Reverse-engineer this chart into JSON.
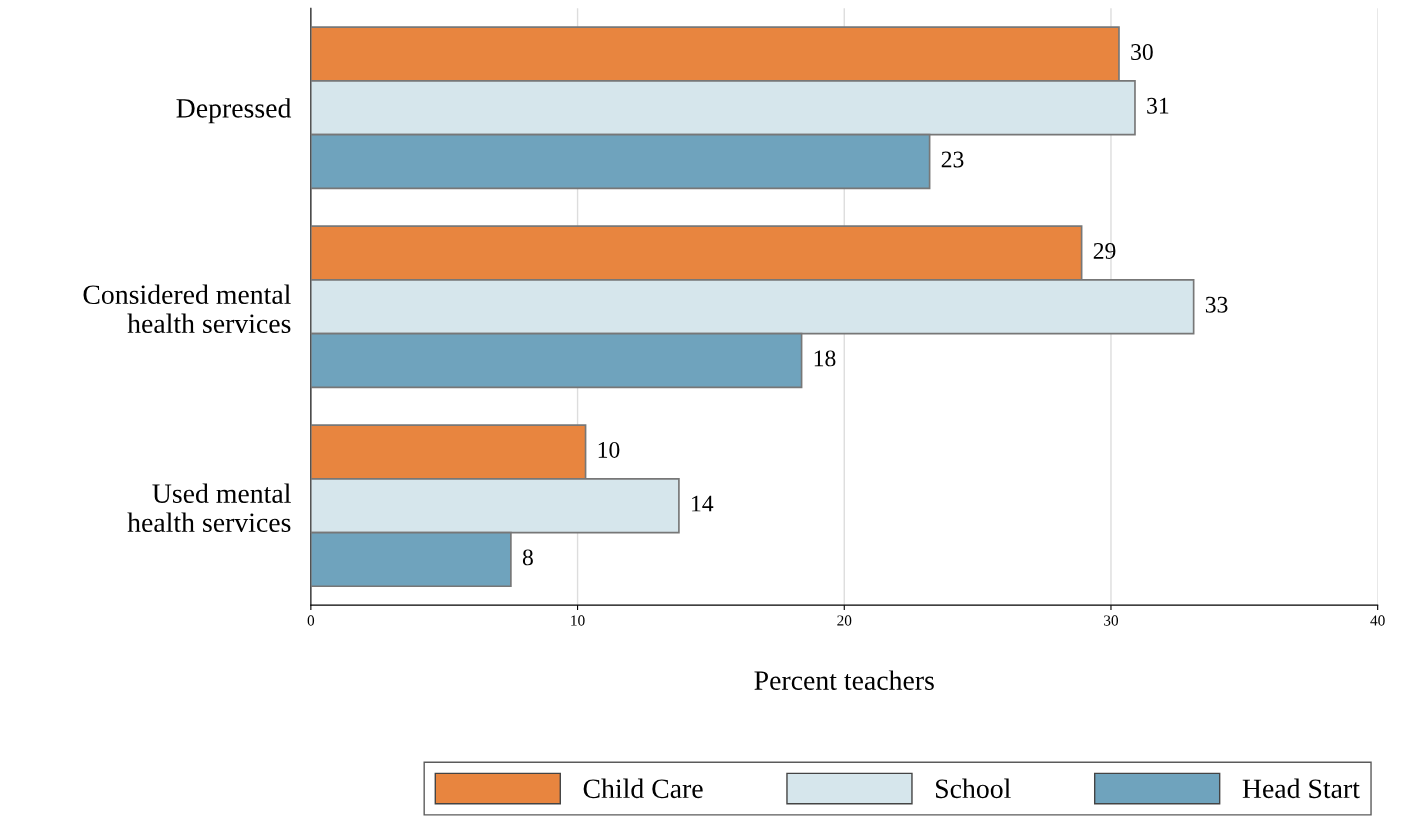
{
  "chart_data": {
    "type": "bar",
    "orientation": "horizontal",
    "categories": [
      "Depressed",
      "Considered mental\nhealth services",
      "Used mental\nhealth services"
    ],
    "series": [
      {
        "name": "Child Care",
        "color": "#e8853f",
        "values": [
          30.3,
          28.9,
          10.3
        ],
        "value_labels": [
          "30",
          "29",
          "10"
        ]
      },
      {
        "name": "School",
        "color": "#d6e6ec",
        "values": [
          30.9,
          33.1,
          13.8
        ],
        "value_labels": [
          "31",
          "33",
          "14"
        ]
      },
      {
        "name": "Head Start",
        "color": "#6fa3bd",
        "values": [
          23.2,
          18.4,
          7.5
        ],
        "value_labels": [
          "23",
          "18",
          "8"
        ]
      }
    ],
    "xlabel": "Percent teachers",
    "xlim": [
      0,
      40
    ],
    "xticks": [
      0,
      10,
      20,
      30,
      40
    ],
    "grid": "x",
    "legend": "bottom"
  }
}
